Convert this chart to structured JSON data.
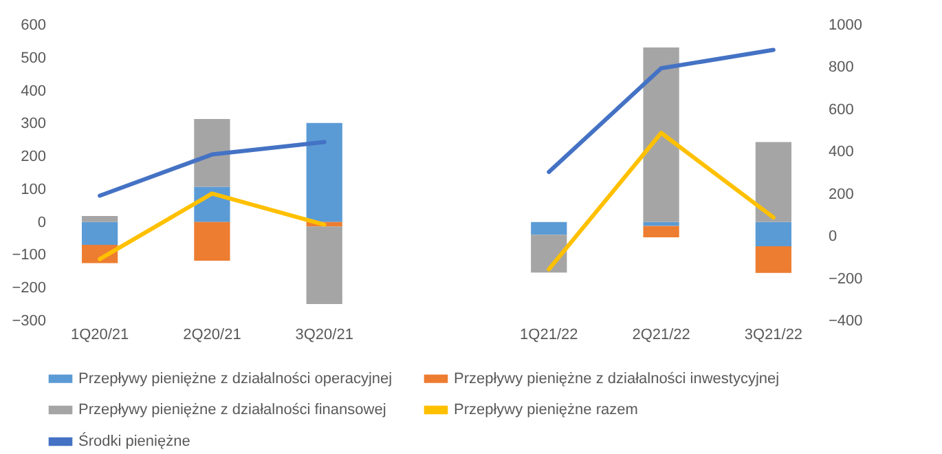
{
  "chart_data": {
    "type": "bar",
    "stacked": true,
    "legend": "bottom",
    "categories": [
      "1Q20/21",
      "2Q20/21",
      "3Q20/21",
      null,
      "1Q21/22",
      "2Q21/22",
      "3Q21/22"
    ],
    "series": [
      {
        "name": "Przepływy pieniężne z działalności operacyjnej",
        "color": "#5b9bd5",
        "values": [
          -70,
          107,
          301,
          null,
          -39,
          -12,
          -74
        ]
      },
      {
        "name": "Przepływy pieniężne z działalności inwestycyjnej",
        "color": "#ed7d31",
        "values": [
          -55,
          -118,
          -14,
          null,
          null,
          -35,
          -81
        ]
      },
      {
        "name": "Przepływy pieniężne z działalności finansowej",
        "color": "#a5a5a5",
        "values": [
          18,
          206,
          -236,
          null,
          -115,
          531,
          243
        ]
      },
      {
        "name": "Przepływy pieniężne razem",
        "type": "line",
        "axis": "y2",
        "color": "#ffc000",
        "values": [
          -109,
          201,
          54,
          null,
          -157,
          488,
          88
        ]
      },
      {
        "name": "Środki pieniężne",
        "type": "line",
        "axis": "y2",
        "color": "#4472c4",
        "values": [
          191,
          386,
          445,
          null,
          303,
          794,
          881
        ]
      }
    ],
    "ylim": [
      -300,
      600
    ],
    "yticks": [
      -300,
      -200,
      -100,
      0,
      100,
      200,
      300,
      400,
      500,
      600
    ],
    "y2lim": [
      -400,
      1000
    ],
    "y2ticks": [
      -400,
      -200,
      0,
      200,
      400,
      600,
      800,
      1000
    ]
  }
}
